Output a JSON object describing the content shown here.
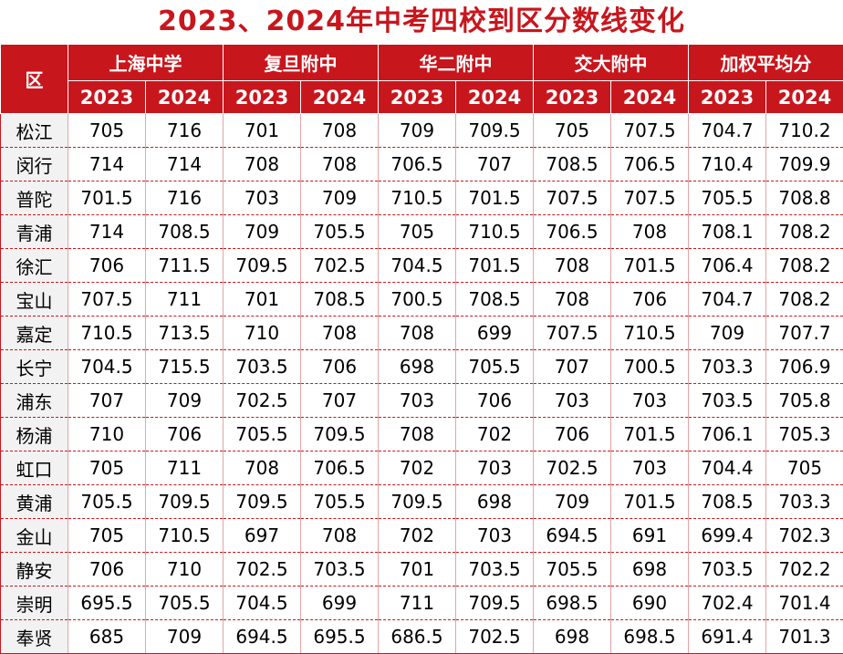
{
  "title": "2023、2024年中考四校到区分数线变化",
  "header": {
    "district_label": "区",
    "groups": [
      "上海中学",
      "复旦附中",
      "华二附中",
      "交大附中",
      "加权平均分"
    ],
    "years": [
      "2023",
      "2024"
    ]
  },
  "rows": [
    {
      "district": "松江",
      "values": [
        "705",
        "716",
        "701",
        "708",
        "709",
        "709.5",
        "705",
        "707.5",
        "704.7",
        "710.2"
      ]
    },
    {
      "district": "闵行",
      "values": [
        "714",
        "714",
        "708",
        "708",
        "706.5",
        "707",
        "708.5",
        "706.5",
        "710.4",
        "709.9"
      ]
    },
    {
      "district": "普陀",
      "values": [
        "701.5",
        "716",
        "703",
        "709",
        "710.5",
        "701.5",
        "707.5",
        "707.5",
        "705.5",
        "708.8"
      ]
    },
    {
      "district": "青浦",
      "values": [
        "714",
        "708.5",
        "709",
        "705.5",
        "705",
        "710.5",
        "706.5",
        "708",
        "708.1",
        "708.2"
      ]
    },
    {
      "district": "徐汇",
      "values": [
        "706",
        "711.5",
        "709.5",
        "702.5",
        "704.5",
        "701.5",
        "708",
        "701.5",
        "706.4",
        "708.2"
      ]
    },
    {
      "district": "宝山",
      "values": [
        "707.5",
        "711",
        "701",
        "708.5",
        "700.5",
        "708.5",
        "708",
        "706",
        "704.7",
        "708.2"
      ]
    },
    {
      "district": "嘉定",
      "values": [
        "710.5",
        "713.5",
        "710",
        "708",
        "708",
        "699",
        "707.5",
        "710.5",
        "709",
        "707.7"
      ]
    },
    {
      "district": "长宁",
      "values": [
        "704.5",
        "715.5",
        "703.5",
        "706",
        "698",
        "705.5",
        "707",
        "700.5",
        "703.3",
        "706.9"
      ]
    },
    {
      "district": "浦东",
      "values": [
        "707",
        "709",
        "702.5",
        "707",
        "703",
        "706",
        "703",
        "703",
        "703.5",
        "705.8"
      ]
    },
    {
      "district": "杨浦",
      "values": [
        "710",
        "706",
        "705.5",
        "709.5",
        "708",
        "702",
        "706",
        "701.5",
        "706.1",
        "705.3"
      ]
    },
    {
      "district": "虹口",
      "values": [
        "705",
        "711",
        "708",
        "706.5",
        "702",
        "703",
        "702.5",
        "703",
        "704.4",
        "705"
      ]
    },
    {
      "district": "黄浦",
      "values": [
        "705.5",
        "709.5",
        "709.5",
        "705.5",
        "709.5",
        "698",
        "709",
        "701.5",
        "708.5",
        "703.3"
      ]
    },
    {
      "district": "金山",
      "values": [
        "705",
        "710.5",
        "697",
        "708",
        "702",
        "703",
        "694.5",
        "691",
        "699.4",
        "702.3"
      ]
    },
    {
      "district": "静安",
      "values": [
        "706",
        "710",
        "702.5",
        "703.5",
        "701",
        "703.5",
        "705.5",
        "698",
        "703.5",
        "702.2"
      ]
    },
    {
      "district": "崇明",
      "values": [
        "695.5",
        "705.5",
        "704.5",
        "699",
        "711",
        "709.5",
        "698.5",
        "690",
        "702.4",
        "701.4"
      ]
    },
    {
      "district": "奉贤",
      "values": [
        "685",
        "709",
        "694.5",
        "695.5",
        "686.5",
        "702.5",
        "698",
        "698.5",
        "691.4",
        "701.3"
      ]
    }
  ],
  "colors": {
    "accent": "#c8161d",
    "district_bg": "#f2f2f2"
  }
}
